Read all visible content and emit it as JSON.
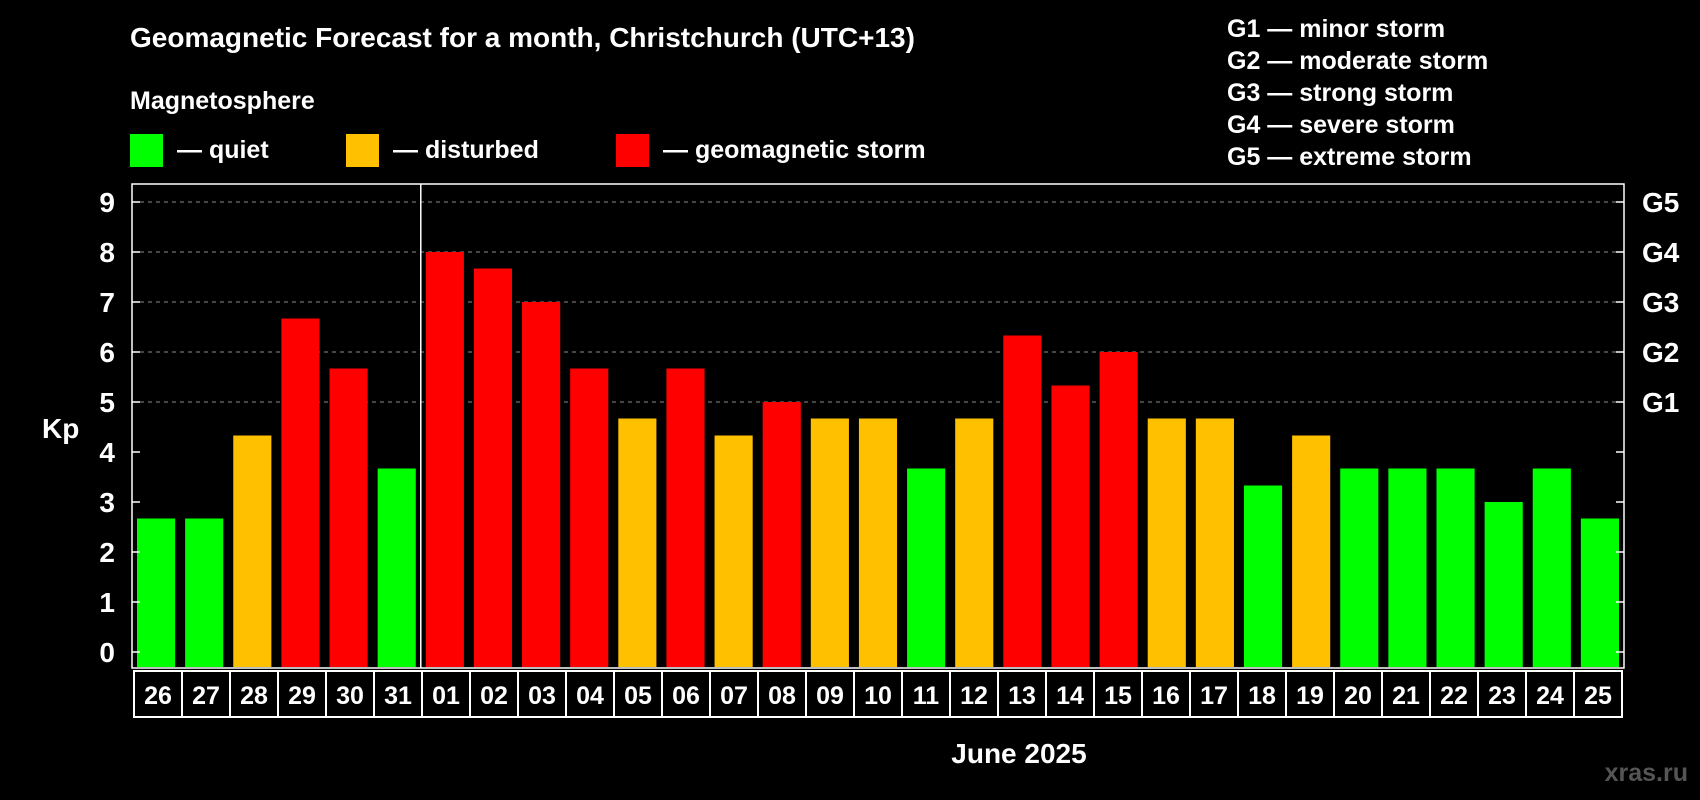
{
  "chart_data": {
    "type": "bar",
    "title": "Geomagnetic Forecast for a month, Christchurch (UTC+13)",
    "legend_title": "Magnetosphere",
    "legend": [
      {
        "key": "quiet",
        "label": "— quiet",
        "color": "#00ff00"
      },
      {
        "key": "disturbed",
        "label": "— disturbed",
        "color": "#ffc000"
      },
      {
        "key": "storm",
        "label": "— geomagnetic storm",
        "color": "#ff0000"
      }
    ],
    "storm_scale": [
      "G1 — minor storm",
      "G2 — moderate storm",
      "G3 — strong storm",
      "G4 — severe storm",
      "G5 — extreme storm"
    ],
    "ylabel": "Kp",
    "xlabel": "June 2025",
    "ylim": [
      0,
      9
    ],
    "yticks": [
      0,
      1,
      2,
      3,
      4,
      5,
      6,
      7,
      8,
      9
    ],
    "right_ticks": [
      {
        "y": 5,
        "label": "G1"
      },
      {
        "y": 6,
        "label": "G2"
      },
      {
        "y": 7,
        "label": "G3"
      },
      {
        "y": 8,
        "label": "G4"
      },
      {
        "y": 9,
        "label": "G5"
      }
    ],
    "grid": "dashed horizontal at 5–9",
    "month_divider_after_index": 5,
    "categories": [
      "26",
      "27",
      "28",
      "29",
      "30",
      "31",
      "01",
      "02",
      "03",
      "04",
      "05",
      "06",
      "07",
      "08",
      "09",
      "10",
      "11",
      "12",
      "13",
      "14",
      "15",
      "16",
      "17",
      "18",
      "19",
      "20",
      "21",
      "22",
      "23",
      "24",
      "25"
    ],
    "values": [
      2.67,
      2.67,
      4.33,
      6.67,
      5.67,
      3.67,
      8,
      7.67,
      7,
      5.67,
      4.67,
      5.67,
      4.33,
      5,
      4.67,
      4.67,
      3.67,
      4.67,
      6.33,
      5.33,
      6,
      4.67,
      4.67,
      3.33,
      4.33,
      3.67,
      3.67,
      3.67,
      3,
      3.67,
      2.67
    ],
    "levels": [
      "quiet",
      "quiet",
      "disturbed",
      "storm",
      "storm",
      "quiet",
      "storm",
      "storm",
      "storm",
      "storm",
      "disturbed",
      "storm",
      "disturbed",
      "storm",
      "disturbed",
      "disturbed",
      "quiet",
      "disturbed",
      "storm",
      "storm",
      "storm",
      "disturbed",
      "disturbed",
      "quiet",
      "disturbed",
      "quiet",
      "quiet",
      "quiet",
      "quiet",
      "quiet",
      "quiet"
    ]
  },
  "watermark": "xras.ru"
}
